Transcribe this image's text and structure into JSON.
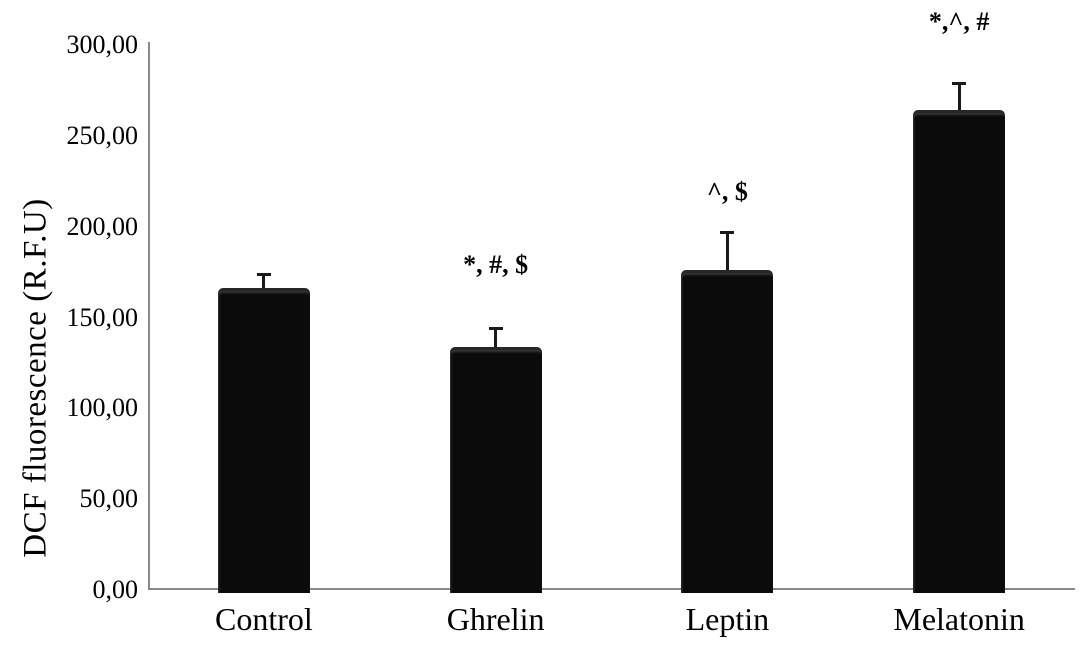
{
  "figure": {
    "background_color": "#ffffff",
    "text_color": "#000000",
    "axis_color": "#8a8a8a",
    "bar_color": "#0b0b0b"
  },
  "chart_data": {
    "type": "bar",
    "title": "",
    "xlabel": "",
    "ylabel": "DCF fluorescence (R.F.U)",
    "categories": [
      "Control",
      "Ghrelin",
      "Leptin",
      "Melatonin"
    ],
    "values": [
      166,
      134,
      176,
      264
    ],
    "errors": [
      8,
      10,
      21,
      15
    ],
    "annotations": [
      "",
      "*, #, $",
      "^, $",
      "*,^, #"
    ],
    "ylim": [
      0,
      300
    ],
    "ytick_values": [
      0,
      50,
      100,
      150,
      200,
      250,
      300
    ],
    "ytick_labels": [
      "0,00",
      "50,00",
      "100,00",
      "150,00",
      "200,00",
      "250,00",
      "300,00"
    ],
    "decimal_separator": ",",
    "grid": false,
    "legend": "none",
    "error_bars": "upper only",
    "annotation_dy": [
      0,
      63,
      40,
      61
    ]
  }
}
